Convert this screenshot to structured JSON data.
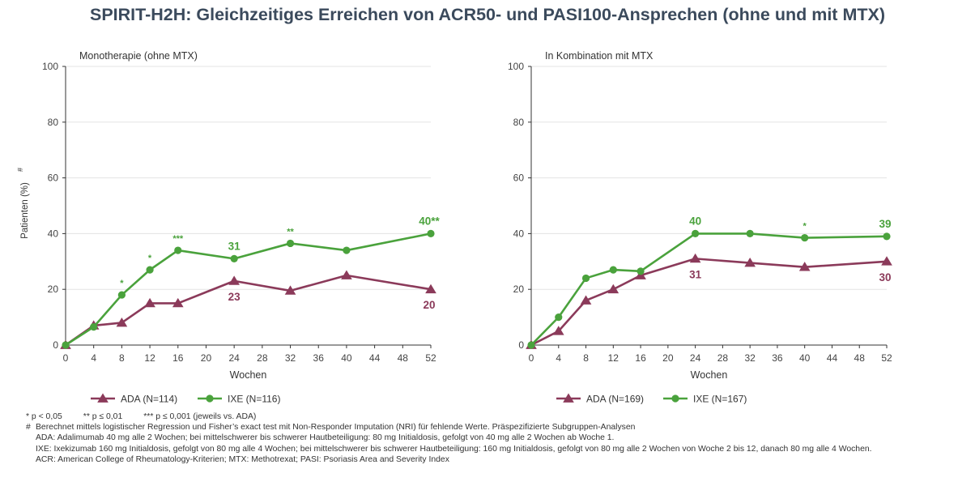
{
  "title": "SPIRIT-H2H: Gleichzeitiges Erreichen von ACR50- und PASI100-Ansprechen (ohne und mit MTX)",
  "colors": {
    "ada": "#8b3a5a",
    "ixe": "#4aa23c",
    "axis": "#333333",
    "grid": "#e3e3e3",
    "text": "#3b4a5c"
  },
  "chart_data": [
    {
      "type": "line",
      "subtitle": "Monotherapie (ohne MTX)",
      "xlabel": "Wochen",
      "ylabel": "Patienten (%)",
      "ylabel_sup": "#",
      "xlim": [
        0,
        52
      ],
      "ylim": [
        0,
        100
      ],
      "xticks": [
        0,
        4,
        8,
        12,
        16,
        20,
        24,
        28,
        32,
        36,
        40,
        44,
        48,
        52
      ],
      "yticks": [
        0,
        20,
        40,
        60,
        80,
        100
      ],
      "grid": "horizontal",
      "legend_position": "bottom",
      "series": [
        {
          "name": "ADA (N=114)",
          "key": "ada",
          "marker": "triangle",
          "x": [
            0,
            4,
            8,
            12,
            16,
            24,
            32,
            40,
            52
          ],
          "y": [
            0,
            7,
            8,
            15,
            15,
            23,
            19.5,
            25,
            20
          ]
        },
        {
          "name": "IXE (N=116)",
          "key": "ixe",
          "marker": "circle",
          "x": [
            0,
            4,
            8,
            12,
            16,
            24,
            32,
            40,
            52
          ],
          "y": [
            0,
            6.5,
            18,
            27,
            34,
            31,
            36.5,
            34,
            40
          ]
        }
      ],
      "value_labels": [
        {
          "series": "ada",
          "x": 24,
          "text": "23",
          "pos": "below"
        },
        {
          "series": "ada",
          "x": 52,
          "text": "20",
          "pos": "below"
        },
        {
          "series": "ixe",
          "x": 24,
          "text": "31",
          "pos": "above"
        },
        {
          "series": "ixe",
          "x": 52,
          "text": "40**",
          "pos": "above"
        }
      ],
      "significance": [
        {
          "x": 8,
          "text": "*"
        },
        {
          "x": 12,
          "text": "*"
        },
        {
          "x": 16,
          "text": "***"
        },
        {
          "x": 32,
          "text": "**"
        }
      ]
    },
    {
      "type": "line",
      "subtitle": "In Kombination mit MTX",
      "xlabel": "Wochen",
      "ylabel": "",
      "ylabel_sup": "",
      "xlim": [
        0,
        52
      ],
      "ylim": [
        0,
        100
      ],
      "xticks": [
        0,
        4,
        8,
        12,
        16,
        20,
        24,
        28,
        32,
        36,
        40,
        44,
        48,
        52
      ],
      "yticks": [
        0,
        20,
        40,
        60,
        80,
        100
      ],
      "grid": "horizontal",
      "legend_position": "bottom",
      "series": [
        {
          "name": "ADA (N=169)",
          "key": "ada",
          "marker": "triangle",
          "x": [
            0,
            4,
            8,
            12,
            16,
            24,
            32,
            40,
            52
          ],
          "y": [
            0,
            5,
            16,
            20,
            25,
            31,
            29.5,
            28,
            30
          ]
        },
        {
          "name": "IXE (N=167)",
          "key": "ixe",
          "marker": "circle",
          "x": [
            0,
            4,
            8,
            12,
            16,
            24,
            32,
            40,
            52
          ],
          "y": [
            0,
            10,
            24,
            27,
            26.5,
            40,
            40,
            38.5,
            39
          ]
        }
      ],
      "value_labels": [
        {
          "series": "ixe",
          "x": 24,
          "text": "40",
          "pos": "above"
        },
        {
          "series": "ixe",
          "x": 52,
          "text": "39",
          "pos": "above"
        },
        {
          "series": "ada",
          "x": 24,
          "text": "31",
          "pos": "below"
        },
        {
          "series": "ada",
          "x": 52,
          "text": "30",
          "pos": "below"
        }
      ],
      "significance": [
        {
          "x": 40,
          "text": "*"
        }
      ]
    }
  ],
  "footnotes": {
    "sig_items": [
      "* p < 0,05",
      "** p ≤ 0,01",
      "*** p ≤ 0,001 (jeweils vs. ADA)"
    ],
    "hash_symbol": "#",
    "hash_text": "Berechnet mittels logistischer Regression und Fisher’s exact test mit Non-Responder Imputation (NRI) für fehlende Werte. Präspezifizierte Subgruppen-Analysen",
    "ada": "ADA: Adalimumab 40 mg alle 2 Wochen; bei mittelschwerer bis schwerer Hautbeteiligung: 80 mg Initialdosis, gefolgt von 40 mg alle 2 Wochen ab Woche 1.",
    "ixe": "IXE: Ixekizumab 160 mg Initialdosis, gefolgt von 80 mg alle 4 Wochen; bei mittelschwerer bis schwerer Hautbeteiligung: 160 mg Initialdosis, gefolgt von 80 mg alle 2 Wochen von Woche 2 bis 12, danach 80 mg alle 4 Wochen.",
    "abbr": "ACR: American College of Rheumatology-Kriterien; MTX: Methotrexat; PASI: Psoriasis Area and Severity Index"
  }
}
